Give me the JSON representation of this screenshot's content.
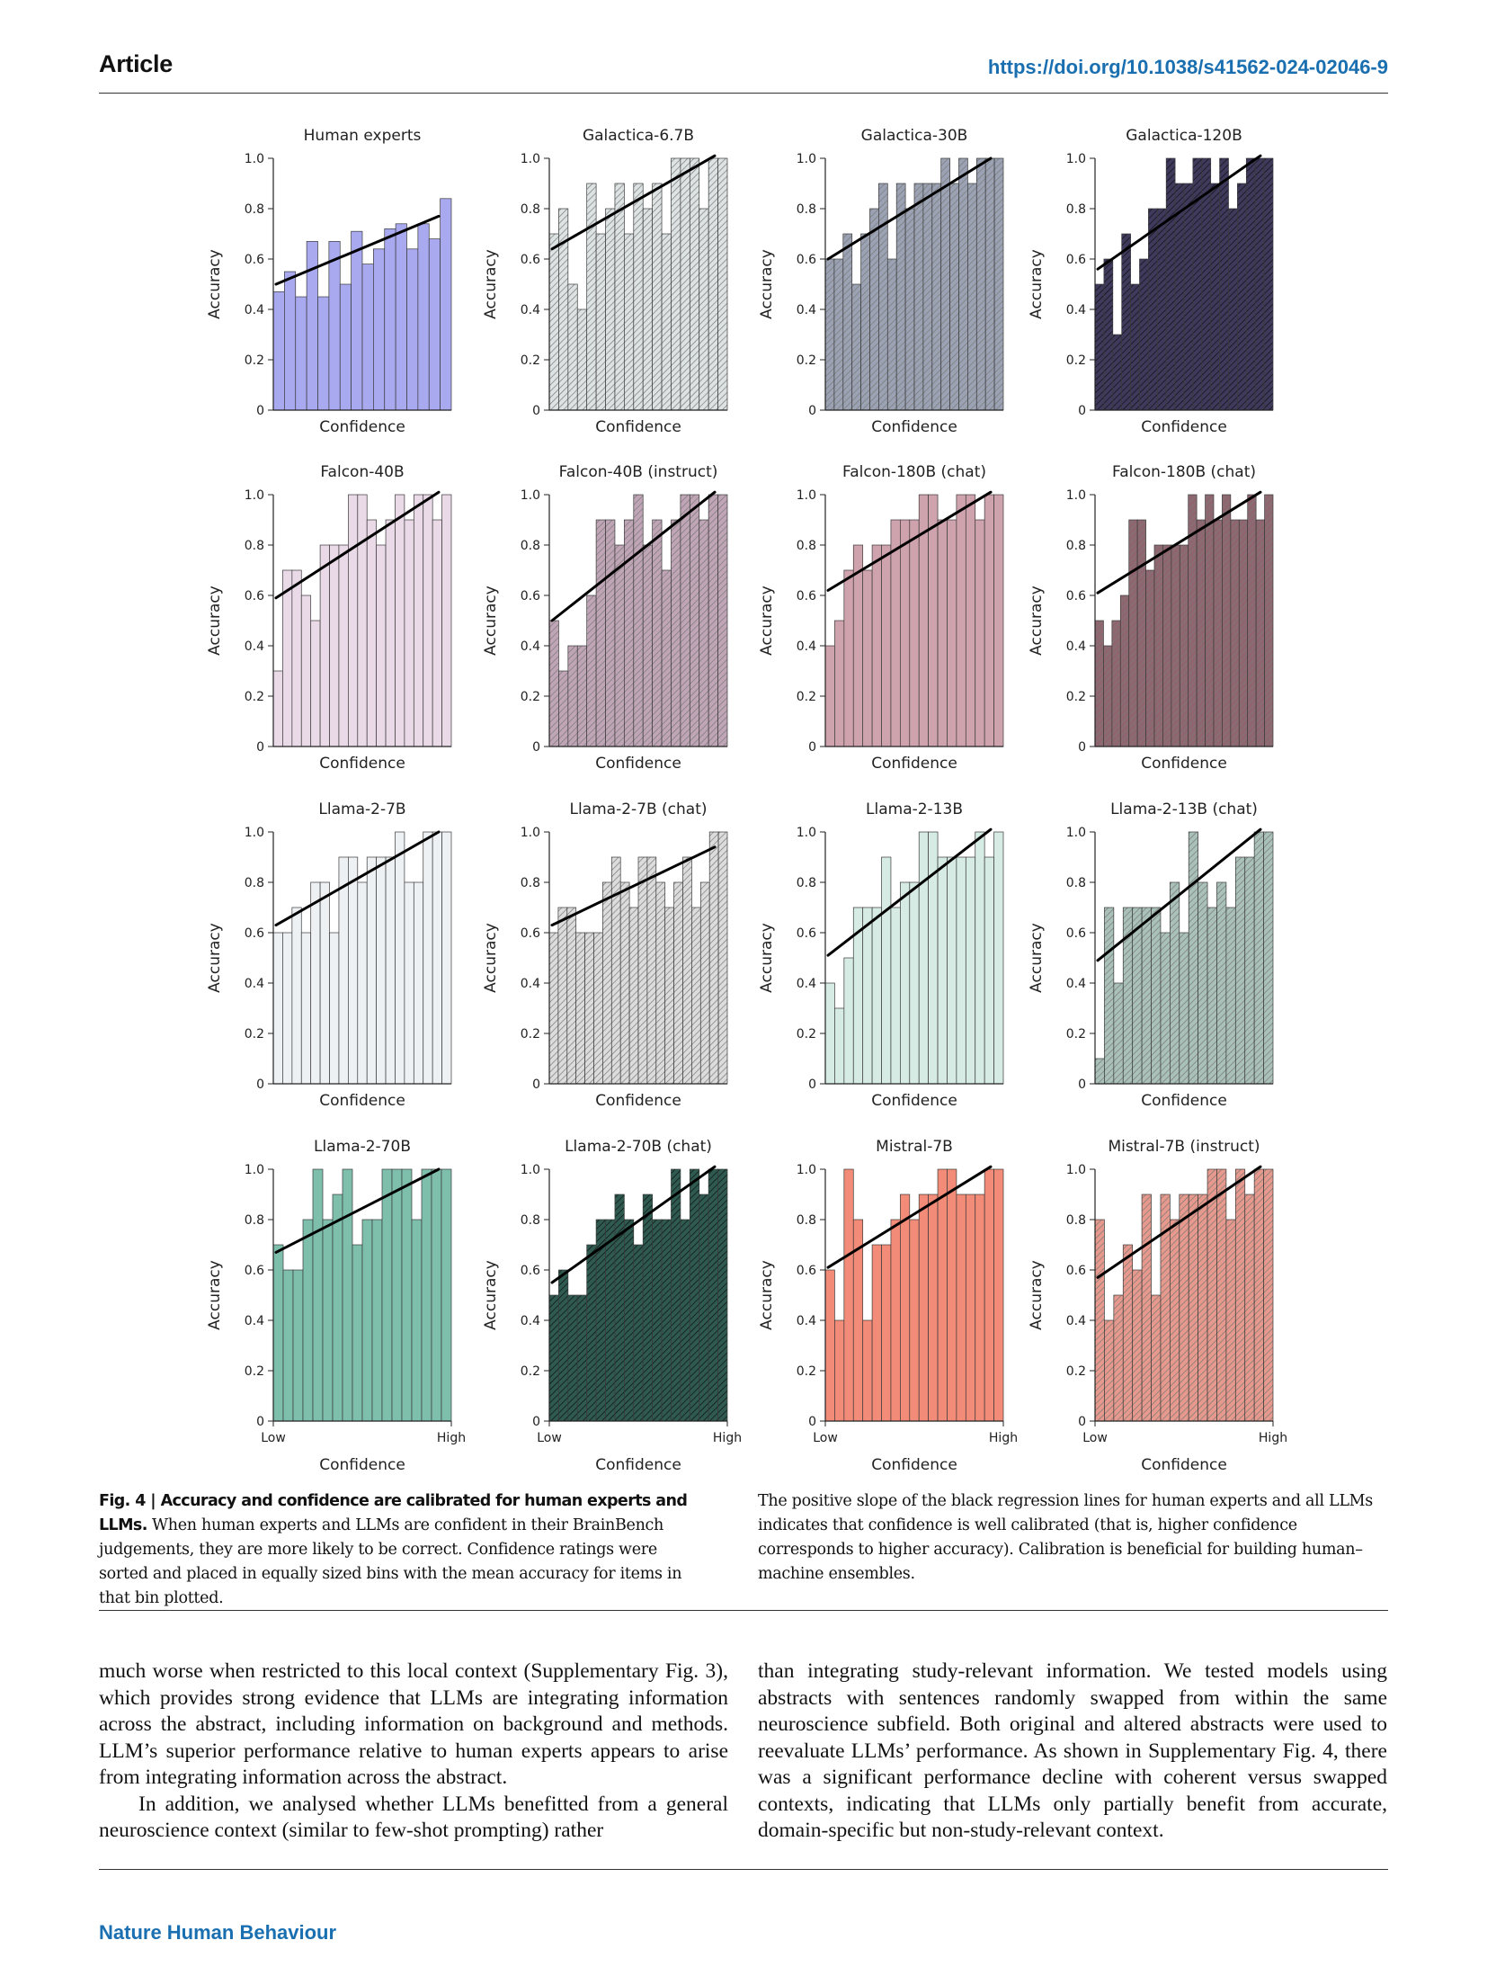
{
  "header": {
    "section": "Article",
    "doi": "https://doi.org/10.1038/s41562-024-02046-9"
  },
  "figure": {
    "axis_x_label": "Confidence",
    "axis_y_label": "Accuracy",
    "x_tick_low": "Low",
    "x_tick_high": "High",
    "y_ticks": [
      "0",
      "0.2",
      "0.4",
      "0.6",
      "0.8",
      "1.0"
    ]
  },
  "chart_data": [
    {
      "type": "bar",
      "title": "Human experts",
      "color": "#a9a9f0",
      "hatch": false,
      "values": [
        0.47,
        0.55,
        0.45,
        0.67,
        0.45,
        0.67,
        0.5,
        0.71,
        0.58,
        0.64,
        0.72,
        0.74,
        0.64,
        0.74,
        0.68,
        0.84
      ],
      "fit": [
        0.5,
        0.77
      ],
      "ylim": [
        0,
        1
      ]
    },
    {
      "type": "bar",
      "title": "Galactica-6.7B",
      "color": "#dde3e3",
      "hatch": true,
      "values": [
        0.7,
        0.8,
        0.5,
        0.4,
        0.9,
        0.7,
        0.8,
        0.9,
        0.7,
        0.9,
        0.8,
        0.9,
        0.7,
        1.0,
        1.0,
        1.0,
        0.8,
        1.0,
        1.0
      ],
      "fit": [
        0.64,
        1.01
      ],
      "ylim": [
        0,
        1
      ]
    },
    {
      "type": "bar",
      "title": "Galactica-30B",
      "color": "#9ba2b3",
      "hatch": true,
      "values": [
        0.6,
        0.6,
        0.7,
        0.5,
        0.7,
        0.8,
        0.9,
        0.6,
        0.9,
        0.8,
        0.9,
        0.9,
        0.9,
        1.0,
        0.9,
        1.0,
        0.9,
        1.0,
        1.0,
        1.0
      ],
      "fit": [
        0.6,
        1.0
      ],
      "ylim": [
        0,
        1
      ]
    },
    {
      "type": "bar",
      "title": "Galactica-120B",
      "color": "#3f3a5c",
      "hatch": true,
      "values": [
        0.5,
        0.6,
        0.3,
        0.7,
        0.5,
        0.6,
        0.8,
        0.8,
        1.0,
        0.9,
        0.9,
        1.0,
        1.0,
        0.9,
        1.0,
        0.8,
        0.9,
        1.0,
        1.0,
        1.0
      ],
      "fit": [
        0.56,
        1.01
      ],
      "ylim": [
        0,
        1
      ]
    },
    {
      "type": "bar",
      "title": "Falcon-40B",
      "color": "#ead9e7",
      "hatch": false,
      "values": [
        0.3,
        0.7,
        0.7,
        0.6,
        0.5,
        0.8,
        0.8,
        0.8,
        1.0,
        1.0,
        0.9,
        0.8,
        0.9,
        1.0,
        0.9,
        1.0,
        1.0,
        0.9,
        1.0
      ],
      "fit": [
        0.59,
        1.01
      ],
      "ylim": [
        0,
        1
      ]
    },
    {
      "type": "bar",
      "title": "Falcon-40B (instruct)",
      "color": "#c0a5b6",
      "hatch": true,
      "values": [
        0.5,
        0.3,
        0.4,
        0.4,
        0.6,
        0.9,
        0.9,
        0.8,
        0.9,
        1.0,
        0.8,
        0.9,
        0.7,
        0.9,
        1.0,
        1.0,
        0.9,
        1.0,
        1.0
      ],
      "fit": [
        0.5,
        1.01
      ],
      "ylim": [
        0,
        1
      ]
    },
    {
      "type": "bar",
      "title": "Falcon-180B (chat)",
      "color": "#cfa3ad",
      "hatch": false,
      "values": [
        0.4,
        0.5,
        0.7,
        0.8,
        0.7,
        0.8,
        0.8,
        0.9,
        0.9,
        0.9,
        1.0,
        1.0,
        0.9,
        0.9,
        1.0,
        1.0,
        0.9,
        1.0,
        1.0
      ],
      "fit": [
        0.62,
        1.01
      ],
      "ylim": [
        0,
        1
      ]
    },
    {
      "type": "bar",
      "title": "Falcon-180B (chat)",
      "color": "#8f6670",
      "hatch": true,
      "values": [
        0.5,
        0.4,
        0.5,
        0.6,
        0.9,
        0.9,
        0.7,
        0.8,
        0.8,
        0.8,
        0.8,
        1.0,
        0.9,
        1.0,
        0.9,
        1.0,
        0.9,
        0.9,
        1.0,
        0.9,
        1.0
      ],
      "fit": [
        0.61,
        1.01
      ],
      "ylim": [
        0,
        1
      ]
    },
    {
      "type": "bar",
      "title": "Llama-2-7B",
      "color": "#eef1f4",
      "hatch": false,
      "values": [
        0.6,
        0.6,
        0.7,
        0.6,
        0.8,
        0.8,
        0.6,
        0.9,
        0.9,
        0.8,
        0.9,
        0.9,
        0.9,
        1.0,
        0.8,
        0.8,
        1.0,
        1.0,
        1.0
      ],
      "fit": [
        0.63,
        1.0
      ],
      "ylim": [
        0,
        1
      ]
    },
    {
      "type": "bar",
      "title": "Llama-2-7B (chat)",
      "color": "#dcdcdc",
      "hatch": true,
      "values": [
        0.6,
        0.7,
        0.7,
        0.6,
        0.6,
        0.6,
        0.8,
        0.9,
        0.8,
        0.7,
        0.9,
        0.9,
        0.8,
        0.7,
        0.8,
        0.9,
        0.7,
        0.8,
        1.0,
        1.0
      ],
      "fit": [
        0.63,
        0.94
      ],
      "ylim": [
        0,
        1
      ]
    },
    {
      "type": "bar",
      "title": "Llama-2-13B",
      "color": "#d5ebe4",
      "hatch": false,
      "values": [
        0.4,
        0.3,
        0.5,
        0.7,
        0.7,
        0.7,
        0.9,
        0.7,
        0.8,
        0.8,
        1.0,
        1.0,
        0.9,
        0.9,
        0.9,
        0.9,
        1.0,
        0.9,
        1.0
      ],
      "fit": [
        0.51,
        1.01
      ],
      "ylim": [
        0,
        1
      ]
    },
    {
      "type": "bar",
      "title": "Llama-2-13B (chat)",
      "color": "#a9c1b9",
      "hatch": true,
      "values": [
        0.1,
        0.7,
        0.4,
        0.7,
        0.7,
        0.7,
        0.7,
        0.6,
        0.8,
        0.6,
        1.0,
        0.8,
        0.7,
        0.8,
        0.7,
        0.9,
        0.9,
        1.0,
        1.0
      ],
      "fit": [
        0.49,
        1.01
      ],
      "ylim": [
        0,
        1
      ]
    },
    {
      "type": "bar",
      "title": "Llama-2-70B",
      "color": "#7ebfab",
      "hatch": false,
      "values": [
        0.7,
        0.6,
        0.6,
        0.8,
        1.0,
        0.8,
        0.9,
        1.0,
        0.7,
        0.8,
        0.8,
        1.0,
        1.0,
        1.0,
        0.8,
        1.0,
        1.0,
        1.0
      ],
      "fit": [
        0.67,
        1.0
      ],
      "ylim": [
        0,
        1
      ],
      "x_ticks": [
        "Low",
        "High"
      ]
    },
    {
      "type": "bar",
      "title": "Llama-2-70B (chat)",
      "color": "#2f5a4f",
      "hatch": true,
      "values": [
        0.5,
        0.6,
        0.5,
        0.5,
        0.7,
        0.8,
        0.8,
        0.9,
        0.8,
        0.7,
        0.9,
        0.8,
        0.8,
        1.0,
        0.8,
        1.0,
        0.9,
        1.0,
        1.0
      ],
      "fit": [
        0.55,
        1.01
      ],
      "ylim": [
        0,
        1
      ],
      "x_ticks": [
        "Low",
        "High"
      ]
    },
    {
      "type": "bar",
      "title": "Mistral-7B",
      "color": "#f28b77",
      "hatch": false,
      "values": [
        0.6,
        0.4,
        1.0,
        0.8,
        0.4,
        0.7,
        0.7,
        0.8,
        0.9,
        0.8,
        0.9,
        0.9,
        1.0,
        1.0,
        0.9,
        0.9,
        0.9,
        1.0,
        1.0
      ],
      "fit": [
        0.61,
        1.01
      ],
      "ylim": [
        0,
        1
      ],
      "x_ticks": [
        "Low",
        "High"
      ]
    },
    {
      "type": "bar",
      "title": "Mistral-7B (instruct)",
      "color": "#e6998c",
      "hatch": true,
      "values": [
        0.8,
        0.4,
        0.5,
        0.7,
        0.6,
        0.9,
        0.5,
        0.9,
        0.8,
        0.9,
        0.9,
        0.9,
        1.0,
        1.0,
        0.8,
        1.0,
        0.9,
        1.0,
        1.0
      ],
      "fit": [
        0.57,
        1.01
      ],
      "ylim": [
        0,
        1
      ],
      "x_ticks": [
        "Low",
        "High"
      ]
    }
  ],
  "caption": {
    "label": "Fig. 4 | Accuracy and confidence are calibrated for human experts and LLMs.",
    "left_text": "When human experts and LLMs are confident in their BrainBench judgements, they are more likely to be correct. Confidence ratings were sorted and placed in equally sized bins with the mean accuracy for items in that bin plotted.",
    "right_text": "The positive slope of the black regression lines for human experts and all LLMs indicates that confidence is well calibrated (that is, higher confidence corresponds to higher accuracy). Calibration is beneficial for building human–machine ensembles."
  },
  "body": {
    "left_p1": "much worse when restricted to this local context (Supplementary Fig. 3), which provides strong evidence that LLMs are integrating information across the abstract, including information on background and methods. LLM’s superior performance relative to human experts appears to arise from integrating information across the abstract.",
    "left_p2": "In addition, we analysed whether LLMs benefitted from a general neuroscience context (similar to few-shot prompting) rather",
    "right_p1": "than integrating study-relevant information. We tested models using abstracts with sentences randomly swapped from within the same neuroscience subfield. Both original and altered abstracts were used to reevaluate LLMs’ performance. As shown in Supplementary Fig. 4, there was a significant performance decline with coherent versus swapped contexts, indicating that LLMs only partially benefit from accurate, domain-specific but non-study-relevant context."
  },
  "footer": {
    "journal": "Nature Human Behaviour"
  }
}
